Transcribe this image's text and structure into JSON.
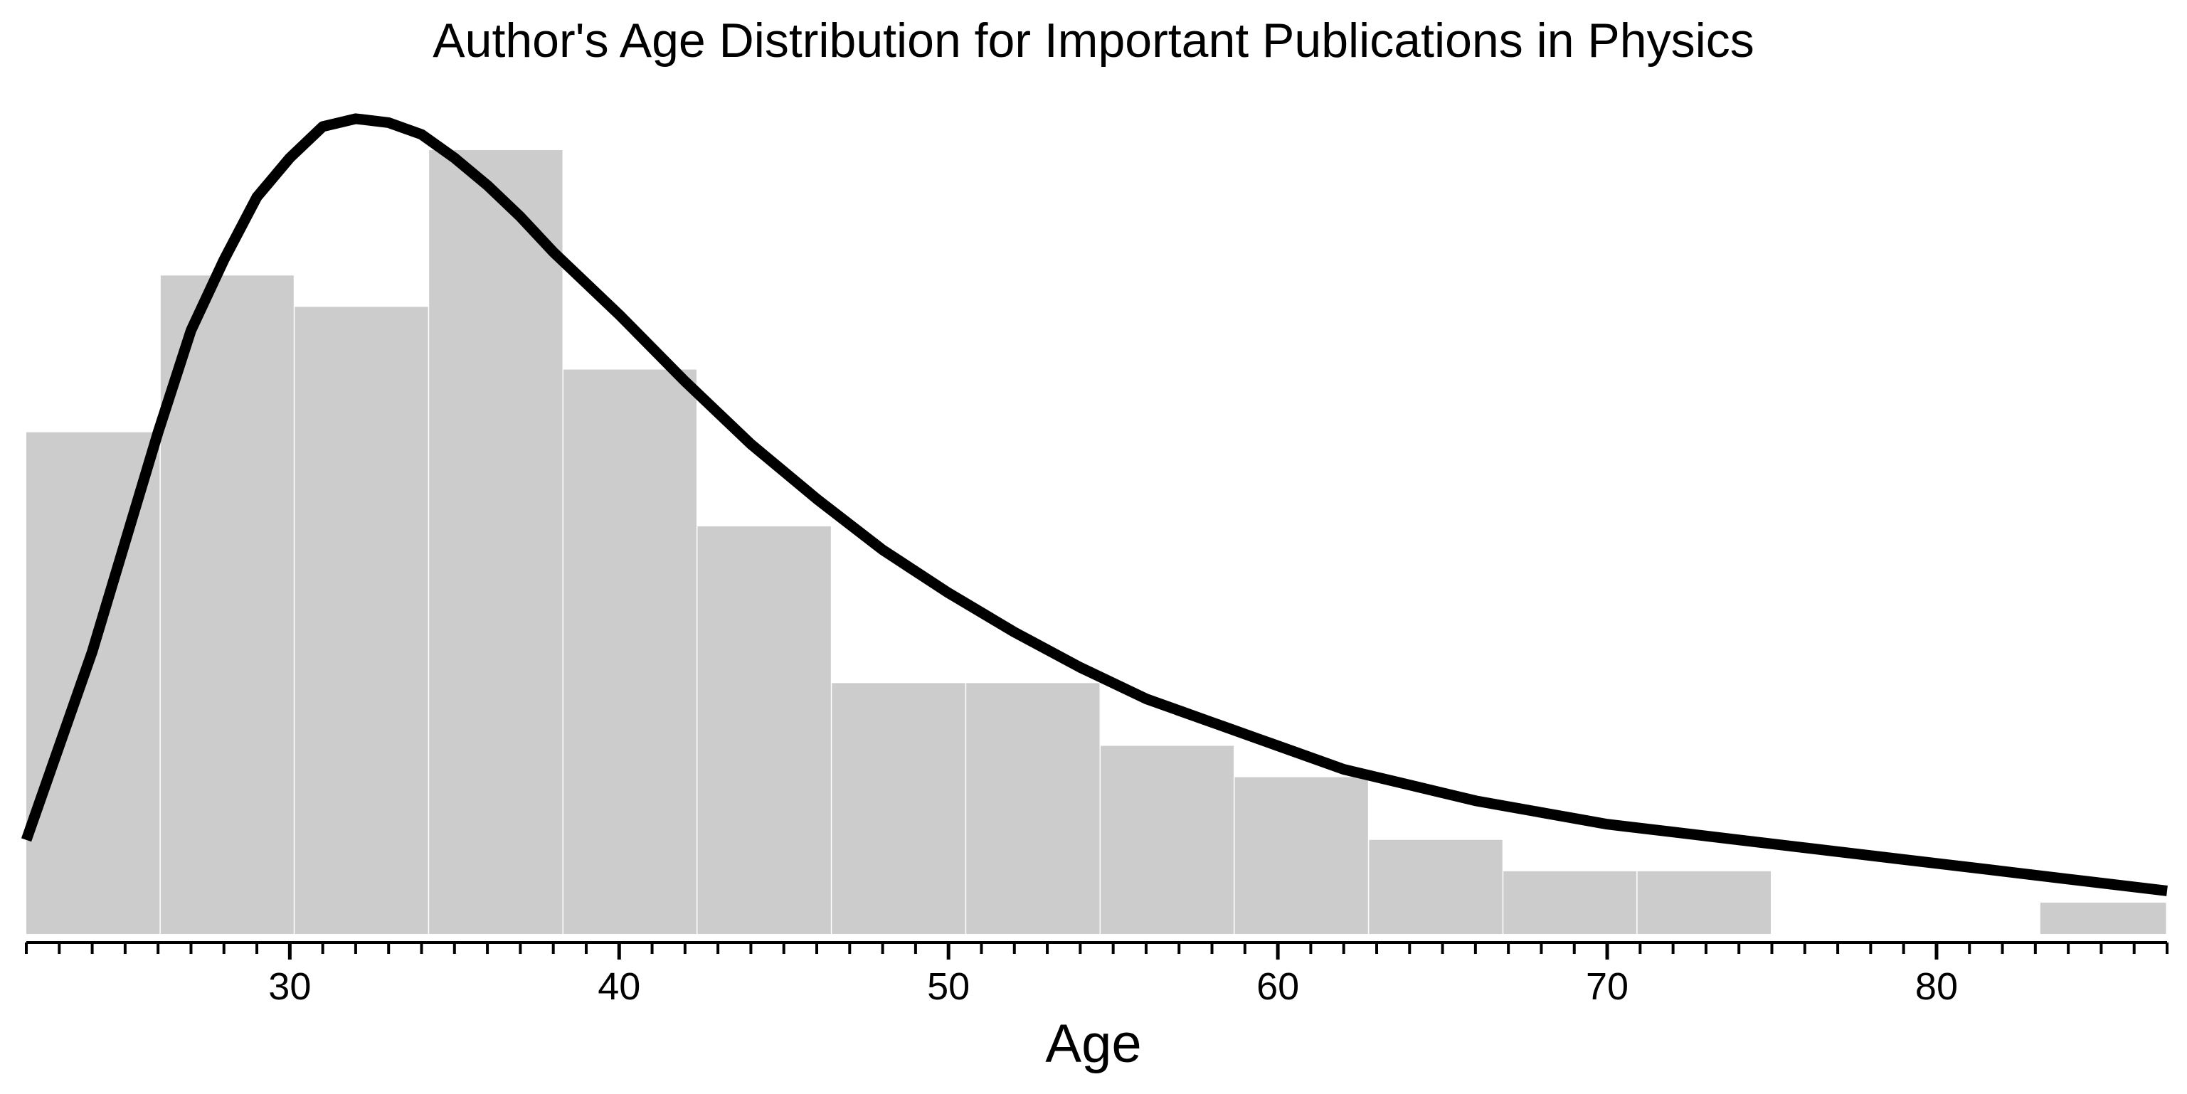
{
  "chart_data": {
    "type": "bar",
    "title": "Author's Age Distribution for Important Publications in Physics",
    "xlabel": "Age",
    "ylabel": "",
    "xlim": [
      22,
      87
    ],
    "ylim": [
      0,
      1
    ],
    "x_ticks": [
      30,
      40,
      50,
      60,
      70,
      80
    ],
    "x_minor_tick_step": 1,
    "grid": false,
    "bins": [
      {
        "start": 22.0,
        "end": 26.08,
        "value": 0.64
      },
      {
        "start": 26.08,
        "end": 30.15,
        "value": 0.84
      },
      {
        "start": 30.15,
        "end": 34.23,
        "value": 0.8
      },
      {
        "start": 34.23,
        "end": 38.31,
        "value": 1.0
      },
      {
        "start": 38.31,
        "end": 42.38,
        "value": 0.72
      },
      {
        "start": 42.38,
        "end": 46.46,
        "value": 0.52
      },
      {
        "start": 46.46,
        "end": 50.54,
        "value": 0.32
      },
      {
        "start": 50.54,
        "end": 54.62,
        "value": 0.32
      },
      {
        "start": 54.62,
        "end": 58.69,
        "value": 0.24
      },
      {
        "start": 58.69,
        "end": 62.77,
        "value": 0.2
      },
      {
        "start": 62.77,
        "end": 66.85,
        "value": 0.12
      },
      {
        "start": 66.85,
        "end": 70.92,
        "value": 0.08
      },
      {
        "start": 70.92,
        "end": 75.0,
        "value": 0.08
      },
      {
        "start": 75.0,
        "end": 79.08,
        "value": 0.0
      },
      {
        "start": 79.08,
        "end": 83.15,
        "value": 0.0
      },
      {
        "start": 83.15,
        "end": 87.0,
        "value": 0.04
      }
    ],
    "bar_color": "#cccccc",
    "curve_color": "#000000",
    "curve": {
      "x": [
        22,
        24,
        26,
        27,
        28,
        29,
        30,
        31,
        32,
        33,
        34,
        35,
        36,
        37,
        38,
        40,
        42,
        44,
        46,
        48,
        50,
        52,
        54,
        56,
        58,
        60,
        62,
        64,
        66,
        68,
        70,
        72,
        74,
        76,
        78,
        80,
        82,
        84,
        87
      ],
      "y": [
        0.12,
        0.36,
        0.64,
        0.77,
        0.86,
        0.94,
        0.99,
        1.03,
        1.04,
        1.035,
        1.02,
        0.99,
        0.955,
        0.915,
        0.87,
        0.79,
        0.705,
        0.625,
        0.555,
        0.49,
        0.435,
        0.385,
        0.34,
        0.3,
        0.27,
        0.24,
        0.21,
        0.19,
        0.17,
        0.155,
        0.14,
        0.13,
        0.12,
        0.11,
        0.1,
        0.09,
        0.08,
        0.07,
        0.055
      ]
    }
  }
}
